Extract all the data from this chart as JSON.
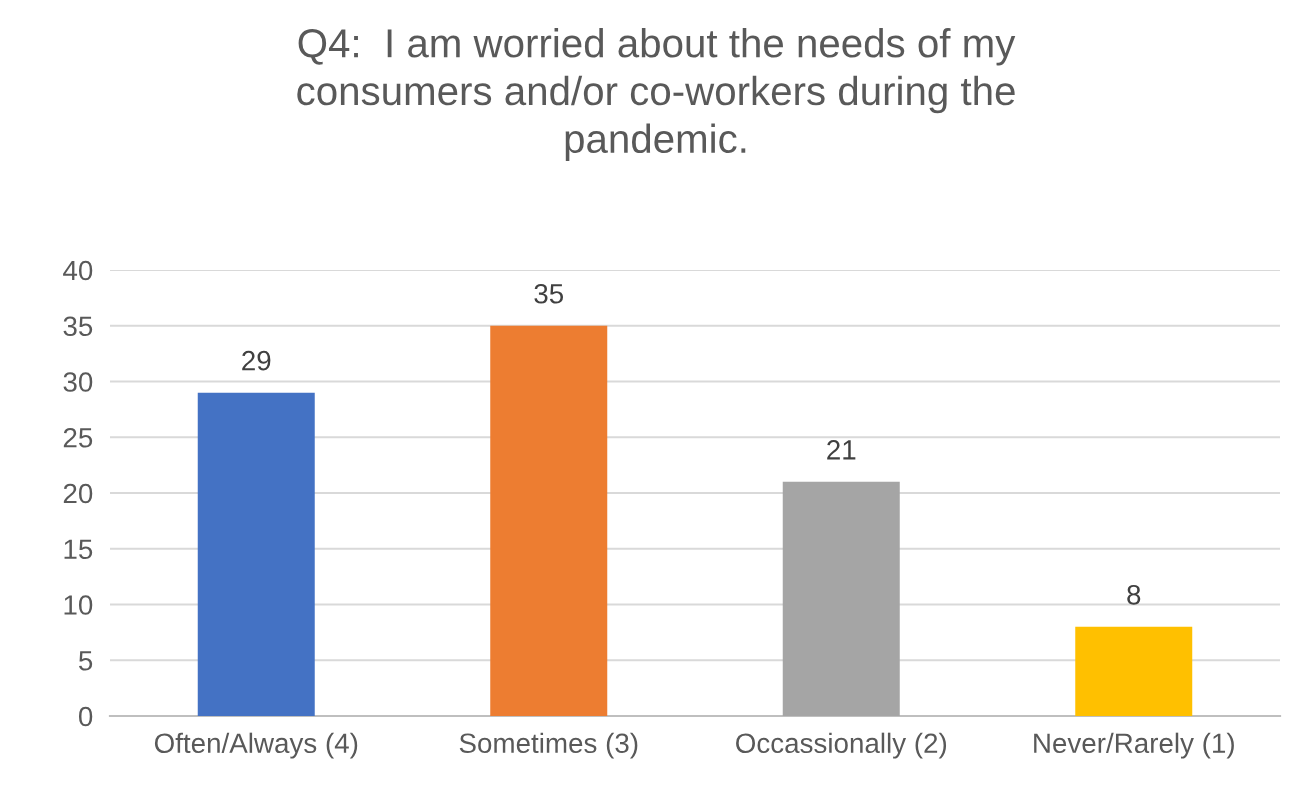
{
  "chart_data": {
    "type": "bar",
    "title": "Q4:  I am worried about the needs of my\nconsumers and/or co-workers during the\npandemic.",
    "categories": [
      "Often/Always (4)",
      "Sometimes (3)",
      "Occassionally (2)",
      "Never/Rarely (1)"
    ],
    "values": [
      29,
      35,
      21,
      8
    ],
    "colors": [
      "#4472c4",
      "#ed7d31",
      "#a5a5a5",
      "#ffc000"
    ],
    "ylim": [
      0,
      40
    ],
    "yticks": [
      0,
      5,
      10,
      15,
      20,
      25,
      30,
      35,
      40
    ],
    "grid": "y",
    "data_labels": true
  }
}
